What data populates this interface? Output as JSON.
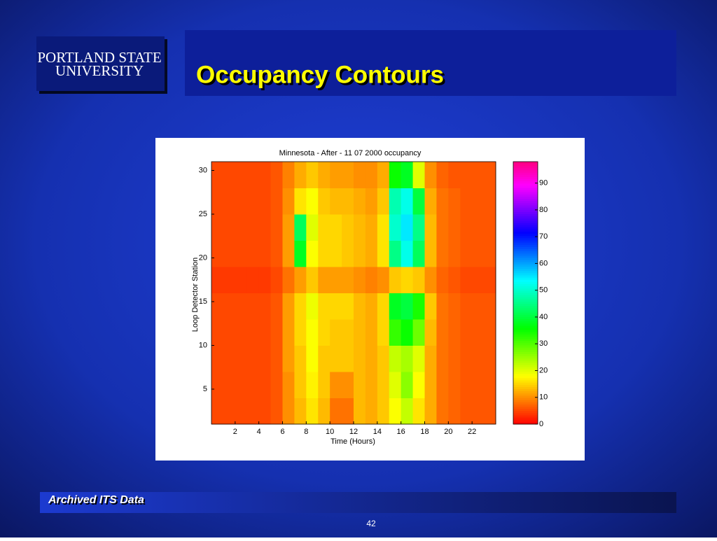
{
  "slide": {
    "logo": [
      "PORTLAND STATE",
      "UNIVERSITY"
    ],
    "title": "Occupancy Contours",
    "footer": "Archived ITS Data",
    "page_number": "42"
  },
  "chart_data": {
    "type": "heatmap",
    "title": "Minnesota - After - 11 07 2000 occupancy",
    "x_label": "Time (Hours)",
    "y_label": "Loop Detector Station",
    "x_edges": [
      0,
      1,
      2,
      3,
      4,
      5,
      6,
      7,
      8,
      9,
      10,
      11,
      12,
      13,
      14,
      15,
      16,
      17,
      18,
      19,
      20,
      21,
      22,
      23,
      24
    ],
    "y_edges": [
      1,
      4,
      7,
      10,
      13,
      16,
      19,
      22,
      25,
      28,
      31
    ],
    "values": [
      [
        5,
        5,
        5,
        5,
        5,
        6,
        10,
        13,
        16,
        13,
        8,
        8,
        13,
        12,
        14,
        18,
        22,
        16,
        12,
        8,
        7,
        6,
        6,
        6
      ],
      [
        5,
        5,
        5,
        5,
        5,
        6,
        10,
        14,
        17,
        14,
        10,
        10,
        13,
        12,
        14,
        20,
        26,
        18,
        12,
        8,
        7,
        6,
        6,
        6
      ],
      [
        5,
        5,
        5,
        5,
        5,
        6,
        11,
        14,
        18,
        14,
        14,
        14,
        13,
        12,
        14,
        22,
        24,
        20,
        12,
        8,
        7,
        6,
        6,
        6
      ],
      [
        5,
        5,
        5,
        5,
        5,
        6,
        11,
        15,
        18,
        15,
        14,
        14,
        13,
        12,
        15,
        32,
        35,
        28,
        13,
        8,
        7,
        6,
        6,
        6
      ],
      [
        5,
        5,
        5,
        5,
        5,
        6,
        11,
        15,
        19,
        15,
        15,
        15,
        13,
        12,
        15,
        38,
        40,
        34,
        14,
        8,
        7,
        6,
        6,
        6
      ],
      [
        4,
        4,
        4,
        4,
        4,
        5,
        8,
        11,
        14,
        11,
        11,
        11,
        10,
        9,
        10,
        14,
        15,
        14,
        10,
        7,
        6,
        5,
        5,
        5
      ],
      [
        5,
        5,
        5,
        5,
        5,
        6,
        11,
        38,
        18,
        15,
        15,
        14,
        13,
        12,
        16,
        45,
        52,
        42,
        13,
        8,
        7,
        6,
        6,
        6
      ],
      [
        5,
        5,
        5,
        5,
        5,
        6,
        11,
        42,
        20,
        15,
        15,
        14,
        13,
        12,
        16,
        50,
        55,
        45,
        13,
        8,
        7,
        6,
        6,
        6
      ],
      [
        5,
        5,
        5,
        5,
        5,
        6,
        10,
        16,
        18,
        14,
        13,
        13,
        12,
        11,
        14,
        48,
        52,
        40,
        12,
        8,
        7,
        6,
        6,
        6
      ],
      [
        5,
        5,
        5,
        5,
        5,
        6,
        9,
        12,
        14,
        12,
        11,
        11,
        10,
        10,
        12,
        35,
        38,
        20,
        10,
        7,
        6,
        6,
        6,
        6
      ]
    ],
    "xlim": [
      0,
      24
    ],
    "xticks": [
      2,
      4,
      6,
      8,
      10,
      12,
      14,
      16,
      18,
      20,
      22
    ],
    "ylim": [
      1,
      31
    ],
    "yticks": [
      5,
      10,
      15,
      20,
      25,
      30
    ],
    "colormap": "hsv",
    "clim": [
      0,
      98
    ],
    "cticks": [
      0,
      10,
      20,
      30,
      40,
      50,
      60,
      70,
      80,
      90
    ]
  }
}
